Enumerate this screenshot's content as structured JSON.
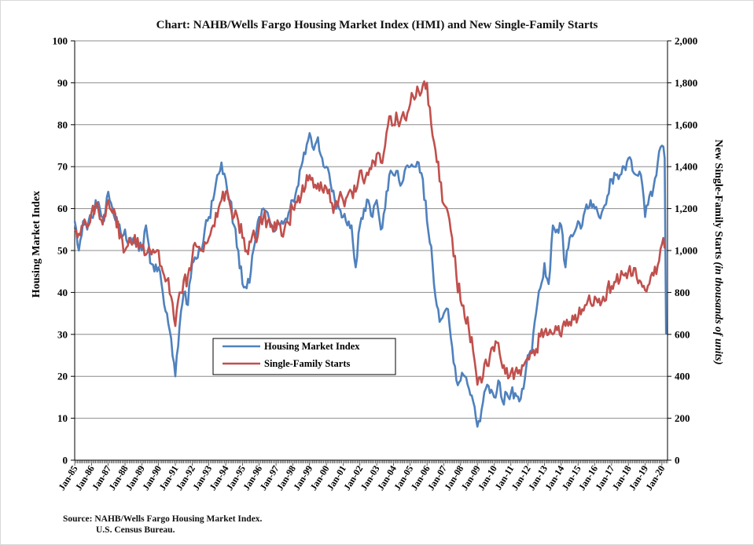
{
  "chart_data": {
    "type": "line",
    "title": "Chart:  NAHB/Wells Fargo Housing Market Index (HMI) and New Single-Family Starts",
    "ylabel": "Housing Market Index",
    "y2label_main": "New Single-Family Starts ",
    "y2label_italic": "(in thousands of units)",
    "ylim": [
      0,
      100
    ],
    "y2lim": [
      0,
      2000
    ],
    "yticks": [
      "0",
      "10",
      "20",
      "30",
      "40",
      "50",
      "60",
      "70",
      "80",
      "90",
      "100"
    ],
    "y2ticks": [
      "0",
      "200",
      "400",
      "600",
      "800",
      "1,000",
      "1,200",
      "1,400",
      "1,600",
      "1,800",
      "2,000"
    ],
    "xticks": [
      "Jan-85",
      "Jan-86",
      "Jan-87",
      "Jan-88",
      "Jan-89",
      "Jan-90",
      "Jan-91",
      "Jan-92",
      "Jan-93",
      "Jan-94",
      "Jan-95",
      "Jan-96",
      "Jan-97",
      "Jan-98",
      "Jan-99",
      "Jan-00",
      "Jan-01",
      "Jan-02",
      "Jan-03",
      "Jan-04",
      "Jan-05",
      "Jan-06",
      "Jan-07",
      "Jan-08",
      "Jan-09",
      "Jan-10",
      "Jan-11",
      "Jan-12",
      "Jan-13",
      "Jan-14",
      "Jan-15",
      "Jan-16",
      "Jan-17",
      "Jan-18",
      "Jan-19",
      "Jan-20"
    ],
    "x_range": [
      "Jan-85",
      "Apr-20"
    ],
    "grid": "horizontal",
    "legend_position": "center-left",
    "series": [
      {
        "name": "Housing Market Index",
        "axis": "left",
        "color": "#4f81bd",
        "points": [
          [
            "Jan-85",
            57
          ],
          [
            "Apr-85",
            50
          ],
          [
            "Jul-85",
            57
          ],
          [
            "Oct-85",
            55
          ],
          [
            "Jan-86",
            58
          ],
          [
            "Apr-86",
            62
          ],
          [
            "Jul-86",
            60
          ],
          [
            "Oct-86",
            57
          ],
          [
            "Jan-87",
            64
          ],
          [
            "Apr-87",
            60
          ],
          [
            "Jul-87",
            58
          ],
          [
            "Oct-87",
            54
          ],
          [
            "Jan-88",
            55
          ],
          [
            "Apr-88",
            52
          ],
          [
            "Jul-88",
            53
          ],
          [
            "Oct-88",
            52
          ],
          [
            "Jan-89",
            50
          ],
          [
            "Apr-89",
            56
          ],
          [
            "Jul-89",
            47
          ],
          [
            "Oct-89",
            45
          ],
          [
            "Jan-90",
            46
          ],
          [
            "Apr-90",
            40
          ],
          [
            "Jul-90",
            35
          ],
          [
            "Oct-90",
            29
          ],
          [
            "Jan-91",
            20
          ],
          [
            "Apr-91",
            32
          ],
          [
            "Jul-91",
            40
          ],
          [
            "Oct-91",
            37
          ],
          [
            "Jan-92",
            47
          ],
          [
            "Apr-92",
            48
          ],
          [
            "Jul-92",
            50
          ],
          [
            "Oct-92",
            55
          ],
          [
            "Jan-93",
            58
          ],
          [
            "Apr-93",
            62
          ],
          [
            "Jul-93",
            68
          ],
          [
            "Oct-93",
            71
          ],
          [
            "Jan-94",
            67
          ],
          [
            "Apr-94",
            62
          ],
          [
            "Jul-94",
            56
          ],
          [
            "Oct-94",
            50
          ],
          [
            "Jan-95",
            42
          ],
          [
            "Apr-95",
            41
          ],
          [
            "Jul-95",
            45
          ],
          [
            "Oct-95",
            52
          ],
          [
            "Jan-96",
            58
          ],
          [
            "Apr-96",
            60
          ],
          [
            "Jul-96",
            59
          ],
          [
            "Oct-96",
            56
          ],
          [
            "Jan-97",
            55
          ],
          [
            "Apr-97",
            56
          ],
          [
            "Jul-97",
            57
          ],
          [
            "Oct-97",
            59
          ],
          [
            "Jan-98",
            62
          ],
          [
            "Apr-98",
            65
          ],
          [
            "Jul-98",
            70
          ],
          [
            "Oct-98",
            73
          ],
          [
            "Jan-99",
            78
          ],
          [
            "Apr-99",
            74
          ],
          [
            "Jul-99",
            77
          ],
          [
            "Oct-99",
            72
          ],
          [
            "Jan-00",
            70
          ],
          [
            "Apr-00",
            66
          ],
          [
            "Jul-00",
            62
          ],
          [
            "Oct-00",
            60
          ],
          [
            "Jan-01",
            58
          ],
          [
            "Apr-01",
            56
          ],
          [
            "Jul-01",
            56
          ],
          [
            "Oct-01",
            46
          ],
          [
            "Jan-02",
            56
          ],
          [
            "Apr-02",
            60
          ],
          [
            "Jul-02",
            62
          ],
          [
            "Oct-02",
            58
          ],
          [
            "Jan-03",
            62
          ],
          [
            "Apr-03",
            55
          ],
          [
            "Jul-03",
            60
          ],
          [
            "Oct-03",
            68
          ],
          [
            "Jan-04",
            68
          ],
          [
            "Apr-04",
            69
          ],
          [
            "Jul-04",
            66
          ],
          [
            "Oct-04",
            70
          ],
          [
            "Jan-05",
            70
          ],
          [
            "Apr-05",
            70
          ],
          [
            "Jul-05",
            71
          ],
          [
            "Oct-05",
            67
          ],
          [
            "Jan-06",
            57
          ],
          [
            "Apr-06",
            51
          ],
          [
            "Jul-06",
            39
          ],
          [
            "Oct-06",
            33
          ],
          [
            "Jan-07",
            35
          ],
          [
            "Apr-07",
            36
          ],
          [
            "Jul-07",
            27
          ],
          [
            "Oct-07",
            19
          ],
          [
            "Jan-08",
            19
          ],
          [
            "Apr-08",
            20
          ],
          [
            "Jul-08",
            17
          ],
          [
            "Oct-08",
            14
          ],
          [
            "Jan-09",
            8
          ],
          [
            "Apr-09",
            12
          ],
          [
            "Jul-09",
            17
          ],
          [
            "Oct-09",
            16
          ],
          [
            "Jan-10",
            15
          ],
          [
            "Apr-10",
            19
          ],
          [
            "Jul-10",
            14
          ],
          [
            "Oct-10",
            16
          ],
          [
            "Jan-11",
            16
          ],
          [
            "Apr-11",
            16
          ],
          [
            "Jul-11",
            14
          ],
          [
            "Oct-11",
            17
          ],
          [
            "Jan-12",
            25
          ],
          [
            "Apr-12",
            26
          ],
          [
            "Jul-12",
            35
          ],
          [
            "Oct-12",
            41
          ],
          [
            "Jan-13",
            47
          ],
          [
            "Apr-13",
            42
          ],
          [
            "Jul-13",
            56
          ],
          [
            "Oct-13",
            55
          ],
          [
            "Jan-14",
            56
          ],
          [
            "Apr-14",
            46
          ],
          [
            "Jul-14",
            53
          ],
          [
            "Oct-14",
            54
          ],
          [
            "Jan-15",
            57
          ],
          [
            "Apr-15",
            56
          ],
          [
            "Jul-15",
            61
          ],
          [
            "Oct-15",
            62
          ],
          [
            "Jan-16",
            60
          ],
          [
            "Apr-16",
            58
          ],
          [
            "Jul-16",
            60
          ],
          [
            "Oct-16",
            63
          ],
          [
            "Jan-17",
            67
          ],
          [
            "Apr-17",
            68
          ],
          [
            "Jul-17",
            68
          ],
          [
            "Oct-17",
            70
          ],
          [
            "Jan-18",
            72
          ],
          [
            "Apr-18",
            69
          ],
          [
            "Jul-18",
            68
          ],
          [
            "Oct-18",
            68
          ],
          [
            "Jan-19",
            58
          ],
          [
            "Apr-19",
            63
          ],
          [
            "Jul-19",
            65
          ],
          [
            "Oct-19",
            71
          ],
          [
            "Jan-20",
            75
          ],
          [
            "Mar-20",
            72
          ],
          [
            "Apr-20",
            30
          ]
        ]
      },
      {
        "name": "Single-Family Starts",
        "axis": "right",
        "color": "#c0504d",
        "points": [
          [
            "Jan-85",
            1100
          ],
          [
            "Apr-85",
            1080
          ],
          [
            "Jul-85",
            1120
          ],
          [
            "Oct-85",
            1110
          ],
          [
            "Jan-86",
            1180
          ],
          [
            "Apr-86",
            1220
          ],
          [
            "Jul-86",
            1150
          ],
          [
            "Oct-86",
            1170
          ],
          [
            "Jan-87",
            1240
          ],
          [
            "Apr-87",
            1180
          ],
          [
            "Jul-87",
            1110
          ],
          [
            "Oct-87",
            1080
          ],
          [
            "Jan-88",
            1000
          ],
          [
            "Apr-88",
            1060
          ],
          [
            "Jul-88",
            1040
          ],
          [
            "Oct-88",
            1060
          ],
          [
            "Jan-89",
            1020
          ],
          [
            "Apr-89",
            980
          ],
          [
            "Jul-89",
            1000
          ],
          [
            "Oct-89",
            990
          ],
          [
            "Jan-90",
            1000
          ],
          [
            "Apr-90",
            900
          ],
          [
            "Jul-90",
            860
          ],
          [
            "Oct-90",
            780
          ],
          [
            "Jan-91",
            640
          ],
          [
            "Apr-91",
            800
          ],
          [
            "Jul-91",
            860
          ],
          [
            "Oct-91",
            880
          ],
          [
            "Jan-92",
            960
          ],
          [
            "Apr-92",
            1020
          ],
          [
            "Jul-92",
            1000
          ],
          [
            "Oct-92",
            1040
          ],
          [
            "Jan-93",
            1060
          ],
          [
            "Apr-93",
            1120
          ],
          [
            "Jul-93",
            1160
          ],
          [
            "Oct-93",
            1240
          ],
          [
            "Jan-94",
            1280
          ],
          [
            "Apr-94",
            1220
          ],
          [
            "Jul-94",
            1160
          ],
          [
            "Oct-94",
            1140
          ],
          [
            "Jan-95",
            1060
          ],
          [
            "Apr-95",
            1000
          ],
          [
            "Jul-95",
            1040
          ],
          [
            "Oct-95",
            1060
          ],
          [
            "Jan-96",
            1120
          ],
          [
            "Apr-96",
            1160
          ],
          [
            "Jul-96",
            1140
          ],
          [
            "Oct-96",
            1120
          ],
          [
            "Jan-97",
            1100
          ],
          [
            "Apr-97",
            1120
          ],
          [
            "Jul-97",
            1100
          ],
          [
            "Oct-97",
            1130
          ],
          [
            "Jan-98",
            1200
          ],
          [
            "Apr-98",
            1230
          ],
          [
            "Jul-98",
            1260
          ],
          [
            "Oct-98",
            1300
          ],
          [
            "Jan-99",
            1360
          ],
          [
            "Apr-99",
            1300
          ],
          [
            "Jul-99",
            1320
          ],
          [
            "Oct-99",
            1290
          ],
          [
            "Jan-00",
            1300
          ],
          [
            "Apr-00",
            1230
          ],
          [
            "Jul-00",
            1220
          ],
          [
            "Oct-00",
            1250
          ],
          [
            "Jan-01",
            1240
          ],
          [
            "Apr-01",
            1260
          ],
          [
            "Jul-01",
            1280
          ],
          [
            "Oct-01",
            1280
          ],
          [
            "Jan-02",
            1380
          ],
          [
            "Apr-02",
            1320
          ],
          [
            "Jul-02",
            1360
          ],
          [
            "Oct-02",
            1430
          ],
          [
            "Jan-03",
            1460
          ],
          [
            "Apr-03",
            1420
          ],
          [
            "Jul-03",
            1500
          ],
          [
            "Oct-03",
            1640
          ],
          [
            "Jan-04",
            1600
          ],
          [
            "Apr-04",
            1620
          ],
          [
            "Jul-04",
            1640
          ],
          [
            "Oct-04",
            1620
          ],
          [
            "Jan-05",
            1700
          ],
          [
            "Apr-05",
            1720
          ],
          [
            "Jul-05",
            1760
          ],
          [
            "Oct-05",
            1790
          ],
          [
            "Jan-06",
            1800
          ],
          [
            "Apr-06",
            1600
          ],
          [
            "Jul-06",
            1480
          ],
          [
            "Oct-06",
            1330
          ],
          [
            "Jan-07",
            1220
          ],
          [
            "Apr-07",
            1180
          ],
          [
            "Jul-07",
            1060
          ],
          [
            "Oct-07",
            880
          ],
          [
            "Jan-08",
            760
          ],
          [
            "Apr-08",
            680
          ],
          [
            "Jul-08",
            620
          ],
          [
            "Oct-08",
            520
          ],
          [
            "Jan-09",
            360
          ],
          [
            "Apr-09",
            370
          ],
          [
            "Jul-09",
            480
          ],
          [
            "Oct-09",
            500
          ],
          [
            "Jan-10",
            520
          ],
          [
            "Apr-10",
            560
          ],
          [
            "Jul-10",
            440
          ],
          [
            "Oct-10",
            440
          ],
          [
            "Jan-11",
            420
          ],
          [
            "Apr-11",
            420
          ],
          [
            "Jul-11",
            430
          ],
          [
            "Oct-11",
            450
          ],
          [
            "Jan-12",
            490
          ],
          [
            "Apr-12",
            510
          ],
          [
            "Jul-12",
            530
          ],
          [
            "Oct-12",
            590
          ],
          [
            "Jan-13",
            610
          ],
          [
            "Apr-13",
            600
          ],
          [
            "Jul-13",
            600
          ],
          [
            "Oct-13",
            620
          ],
          [
            "Jan-14",
            590
          ],
          [
            "Apr-14",
            640
          ],
          [
            "Jul-14",
            660
          ],
          [
            "Oct-14",
            670
          ],
          [
            "Jan-15",
            680
          ],
          [
            "Apr-15",
            720
          ],
          [
            "Jul-15",
            740
          ],
          [
            "Oct-15",
            750
          ],
          [
            "Jan-16",
            780
          ],
          [
            "Apr-16",
            770
          ],
          [
            "Jul-16",
            780
          ],
          [
            "Oct-16",
            820
          ],
          [
            "Jan-17",
            830
          ],
          [
            "Apr-17",
            850
          ],
          [
            "Jul-17",
            860
          ],
          [
            "Oct-17",
            880
          ],
          [
            "Jan-18",
            900
          ],
          [
            "Apr-18",
            880
          ],
          [
            "Jul-18",
            870
          ],
          [
            "Oct-18",
            850
          ],
          [
            "Jan-19",
            810
          ],
          [
            "Apr-19",
            840
          ],
          [
            "Jul-19",
            880
          ],
          [
            "Oct-19",
            930
          ],
          [
            "Jan-20",
            1030
          ],
          [
            "Feb-20",
            1060
          ],
          [
            "Mar-20",
            1010
          ]
        ]
      }
    ]
  },
  "legend": {
    "items": [
      {
        "label": "Housing Market Index",
        "color": "#4f81bd"
      },
      {
        "label": "Single-Family Starts",
        "color": "#c0504d"
      }
    ]
  },
  "source": {
    "line1": "Source:  NAHB/Wells Fargo Housing Market Index.",
    "line2": "U.S. Census Bureau."
  }
}
